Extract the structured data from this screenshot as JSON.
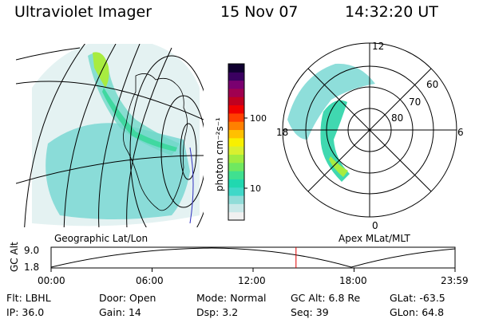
{
  "header": {
    "title": "Ultraviolet Imager",
    "date": "15 Nov 07",
    "time": "14:32:20 UT"
  },
  "left_panel": {
    "caption": "Geographic Lat/Lon"
  },
  "right_panel": {
    "caption": "Apex MLat/MLT",
    "mlt_labels": [
      "12",
      "18",
      "6",
      "0"
    ],
    "lat_labels": [
      "60",
      "70",
      "80"
    ]
  },
  "colorbar": {
    "unit_label": "photon cm⁻²s⁻¹",
    "tick_labels": [
      "100",
      "10"
    ],
    "colors": [
      "#f0f0f0",
      "#c8e8e8",
      "#90dcd8",
      "#40d8c8",
      "#20d8b0",
      "#40e090",
      "#70e860",
      "#a0ec40",
      "#d8f030",
      "#f8f000",
      "#ffc000",
      "#ff8000",
      "#ff4000",
      "#f00000",
      "#c00020",
      "#a00050",
      "#7a0070",
      "#3a0060",
      "#100030"
    ]
  },
  "timeline": {
    "axis_label": "GC Alt",
    "y_ticks": [
      "9.0",
      "1.8"
    ],
    "x_ticks": [
      "00:00",
      "06:00",
      "12:00",
      "18:00",
      "23:59"
    ],
    "marker_time_hours": 14.54,
    "marker_color": "#e00000"
  },
  "footer": {
    "row1": [
      {
        "label": "Flt:",
        "value": "LBHL"
      },
      {
        "label": "Door:",
        "value": "Open"
      },
      {
        "label": "Mode:",
        "value": "Normal"
      },
      {
        "label": "GC Alt:",
        "value": "6.8 Re"
      },
      {
        "label": "GLat:",
        "value": "-63.5"
      }
    ],
    "row2": [
      {
        "label": "IP:",
        "value": "36.0"
      },
      {
        "label": "Gain:",
        "value": "14"
      },
      {
        "label": "Dsp:",
        "value": "3.2"
      },
      {
        "label": "Seq:",
        "value": "39"
      },
      {
        "label": "GLon:",
        "value": "64.8"
      }
    ]
  }
}
